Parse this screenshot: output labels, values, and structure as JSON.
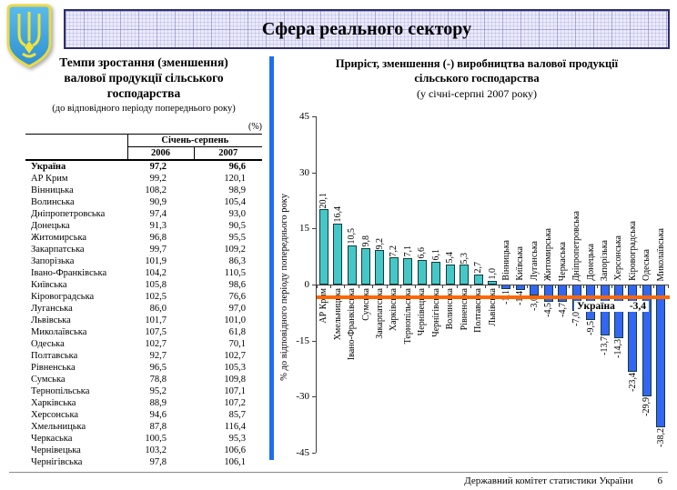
{
  "header": {
    "title": "Сфера реального сектору"
  },
  "left_panel": {
    "title_lines": [
      "Темпи зростання (зменшення)",
      "валової продукції сільського",
      "господарства"
    ],
    "subtitle": "(до відповідного періоду попереднього року)",
    "unit_note": "(%)",
    "table": {
      "col_group_header": "Січень-серпень",
      "columns": [
        "2006",
        "2007"
      ],
      "rows": [
        {
          "region": "Україна",
          "v2006": "97,2",
          "v2007": "96,6",
          "bold": true
        },
        {
          "region": "АР Крим",
          "v2006": "99,2",
          "v2007": "120,1"
        },
        {
          "region": "Вінницька",
          "v2006": "108,2",
          "v2007": "98,9"
        },
        {
          "region": "Волинська",
          "v2006": "90,9",
          "v2007": "105,4"
        },
        {
          "region": "Дніпропетровська",
          "v2006": "97,4",
          "v2007": "93,0"
        },
        {
          "region": "Донецька",
          "v2006": "91,3",
          "v2007": "90,5"
        },
        {
          "region": "Житомирська",
          "v2006": "96,8",
          "v2007": "95,5"
        },
        {
          "region": "Закарпатська",
          "v2006": "99,7",
          "v2007": "109,2"
        },
        {
          "region": "Запорізька",
          "v2006": "101,9",
          "v2007": "86,3"
        },
        {
          "region": "Івано-Франківська",
          "v2006": "104,2",
          "v2007": "110,5"
        },
        {
          "region": "Київська",
          "v2006": "105,8",
          "v2007": "98,6"
        },
        {
          "region": "Кіровоградська",
          "v2006": "102,5",
          "v2007": "76,6"
        },
        {
          "region": "Луганська",
          "v2006": "86,0",
          "v2007": "97,0"
        },
        {
          "region": "Львівська",
          "v2006": "101,7",
          "v2007": "101,0"
        },
        {
          "region": "Миколаївська",
          "v2006": "107,5",
          "v2007": "61,8"
        },
        {
          "region": "Одеська",
          "v2006": "102,7",
          "v2007": "70,1"
        },
        {
          "region": "Полтавська",
          "v2006": "92,7",
          "v2007": "102,7"
        },
        {
          "region": "Рівненська",
          "v2006": "96,5",
          "v2007": "105,3"
        },
        {
          "region": "Сумська",
          "v2006": "78,8",
          "v2007": "109,8"
        },
        {
          "region": "Тернопільська",
          "v2006": "95,2",
          "v2007": "107,1"
        },
        {
          "region": "Харківська",
          "v2006": "88,9",
          "v2007": "107,2"
        },
        {
          "region": "Херсонська",
          "v2006": "94,6",
          "v2007": "85,7"
        },
        {
          "region": "Хмельницька",
          "v2006": "87,8",
          "v2007": "116,4"
        },
        {
          "region": "Черкаська",
          "v2006": "100,5",
          "v2007": "95,3"
        },
        {
          "region": "Чернівецька",
          "v2006": "103,2",
          "v2007": "106,6"
        },
        {
          "region": "Чернігівська",
          "v2006": "97,8",
          "v2007": "106,1"
        }
      ]
    }
  },
  "right_panel": {
    "title_lines": [
      "Приріст, зменшення (-) виробництва валової продукції",
      "сільського господарства"
    ],
    "subtitle": "(у січні-серпні 2007 року)"
  },
  "chart_data": {
    "type": "bar",
    "title": "Приріст, зменшення (-) виробництва валової продукції сільського господарства (у січні-серпні 2007 року)",
    "ylabel": "% до відповідного періоду попереднього року",
    "ylim": [
      -45,
      45
    ],
    "yticks": [
      45,
      30,
      15,
      0,
      -15,
      -30,
      -45
    ],
    "grid": false,
    "legend": false,
    "items": [
      {
        "name": "АР Крим",
        "value": 20.1,
        "label": "20,1"
      },
      {
        "name": "Хмельницька",
        "value": 16.4,
        "label": "16,4"
      },
      {
        "name": "Івано-Франківська",
        "value": 10.5,
        "label": "10,5"
      },
      {
        "name": "Сумська",
        "value": 9.8,
        "label": "9,8"
      },
      {
        "name": "Закарпатська",
        "value": 9.2,
        "label": "9,2"
      },
      {
        "name": "Харківська",
        "value": 7.2,
        "label": "7,2"
      },
      {
        "name": "Тернопільська",
        "value": 7.1,
        "label": "7,1"
      },
      {
        "name": "Чернівецька",
        "value": 6.6,
        "label": "6,6"
      },
      {
        "name": "Чернігівська",
        "value": 6.1,
        "label": "6,1"
      },
      {
        "name": "Волинська",
        "value": 5.4,
        "label": "5,4"
      },
      {
        "name": "Рівненська",
        "value": 5.3,
        "label": "5,3"
      },
      {
        "name": "Полтавська",
        "value": 2.7,
        "label": "2,7"
      },
      {
        "name": "Львівська",
        "value": 1.0,
        "label": "1,0"
      },
      {
        "name": "Вінницька",
        "value": -1.1,
        "label": "-1,1"
      },
      {
        "name": "Київська",
        "value": -1.4,
        "label": "-1,4"
      },
      {
        "name": "Луганська",
        "value": -3.0,
        "label": "-3,0"
      },
      {
        "name": "Житомирська",
        "value": -4.5,
        "label": "-4,5"
      },
      {
        "name": "Черкаська",
        "value": -4.7,
        "label": "-4,7"
      },
      {
        "name": "Дніпропетровська",
        "value": -7.0,
        "label": "-7,0"
      },
      {
        "name": "Донецька",
        "value": -9.5,
        "label": "-9,5"
      },
      {
        "name": "Запорізька",
        "value": -13.7,
        "label": "-13,7"
      },
      {
        "name": "Херсонська",
        "value": -14.3,
        "label": "-14,3"
      },
      {
        "name": "Кіровоградська",
        "value": -23.4,
        "label": "-23,4"
      },
      {
        "name": "Одеська",
        "value": -29.9,
        "label": "-29,9"
      },
      {
        "name": "Миколаївська",
        "value": -38.2,
        "label": "-38,2"
      }
    ],
    "reference_line": {
      "name": "Україна",
      "value": -3.4,
      "label": "-3,4",
      "color": "#FF6600"
    },
    "colors": {
      "positive_bar": "#45C7C7",
      "negative_bar": "#3366F2",
      "bar_border": "#143C3C",
      "axis": "#404040"
    }
  },
  "footer": {
    "org": "Державний комітет статистики України",
    "page": "6"
  }
}
